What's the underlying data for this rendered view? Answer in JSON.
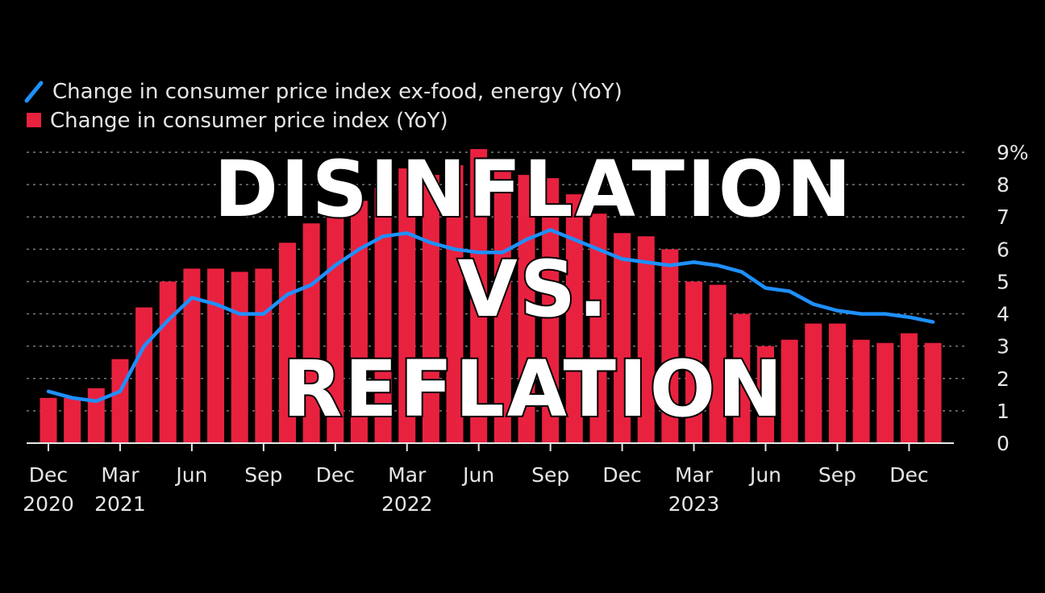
{
  "colors": {
    "background": "#000000",
    "bar": "#e8213f",
    "line": "#1e90ff",
    "grid": "#7a7a7a",
    "text": "#e6e6e6",
    "overlay": "#ffffff"
  },
  "overlay": {
    "line1": "DISINFLATION",
    "line2": "VS.",
    "line3": "REFLATION"
  },
  "chart_data": {
    "type": "bar",
    "title": "",
    "xlabel": "",
    "ylabel": "",
    "ylim": [
      0,
      9
    ],
    "y_ticks": [
      "0",
      "1",
      "2",
      "3",
      "4",
      "5",
      "6",
      "7",
      "8",
      "9%"
    ],
    "x_tick_labels": [
      {
        "month": "Dec",
        "year": "2020"
      },
      {
        "month": "Mar",
        "year": "2021"
      },
      {
        "month": "Jun",
        "year": ""
      },
      {
        "month": "Sep",
        "year": ""
      },
      {
        "month": "Dec",
        "year": ""
      },
      {
        "month": "Mar",
        "year": "2022"
      },
      {
        "month": "Jun",
        "year": ""
      },
      {
        "month": "Sep",
        "year": ""
      },
      {
        "month": "Dec",
        "year": ""
      },
      {
        "month": "Mar",
        "year": "2023"
      },
      {
        "month": "Jun",
        "year": ""
      },
      {
        "month": "Sep",
        "year": ""
      },
      {
        "month": "Dec",
        "year": ""
      }
    ],
    "categories": [
      "Dec 2020",
      "Jan 2021",
      "Feb 2021",
      "Mar 2021",
      "Apr 2021",
      "May 2021",
      "Jun 2021",
      "Jul 2021",
      "Aug 2021",
      "Sep 2021",
      "Oct 2021",
      "Nov 2021",
      "Dec 2021",
      "Jan 2022",
      "Feb 2022",
      "Mar 2022",
      "Apr 2022",
      "May 2022",
      "Jun 2022",
      "Jul 2022",
      "Aug 2022",
      "Sep 2022",
      "Oct 2022",
      "Nov 2022",
      "Dec 2022",
      "Jan 2023",
      "Feb 2023",
      "Mar 2023",
      "Apr 2023",
      "May 2023",
      "Jun 2023",
      "Jul 2023",
      "Aug 2023",
      "Sep 2023",
      "Oct 2023",
      "Nov 2023",
      "Dec 2023",
      "Jan 2024"
    ],
    "series": [
      {
        "name": "Change in consumer price index (YoY)",
        "kind": "bar",
        "values": [
          1.4,
          1.4,
          1.7,
          2.6,
          4.2,
          5.0,
          5.4,
          5.4,
          5.3,
          5.4,
          6.2,
          6.8,
          7.0,
          7.5,
          7.9,
          8.5,
          8.3,
          8.6,
          9.1,
          8.5,
          8.3,
          8.2,
          7.7,
          7.1,
          6.5,
          6.4,
          6.0,
          5.0,
          4.9,
          4.0,
          3.0,
          3.2,
          3.7,
          3.7,
          3.2,
          3.1,
          3.4,
          3.1
        ]
      },
      {
        "name": "Change in consumer price index ex-food, energy (YoY)",
        "kind": "line",
        "values": [
          1.6,
          1.4,
          1.3,
          1.6,
          3.0,
          3.8,
          4.5,
          4.3,
          4.0,
          4.0,
          4.6,
          4.9,
          5.5,
          6.0,
          6.4,
          6.5,
          6.2,
          6.0,
          5.9,
          5.9,
          6.3,
          6.6,
          6.3,
          6.0,
          5.7,
          5.6,
          5.5,
          5.6,
          5.5,
          5.3,
          4.8,
          4.7,
          4.3,
          4.1,
          4.0,
          4.0,
          3.9,
          3.75
        ]
      }
    ]
  }
}
